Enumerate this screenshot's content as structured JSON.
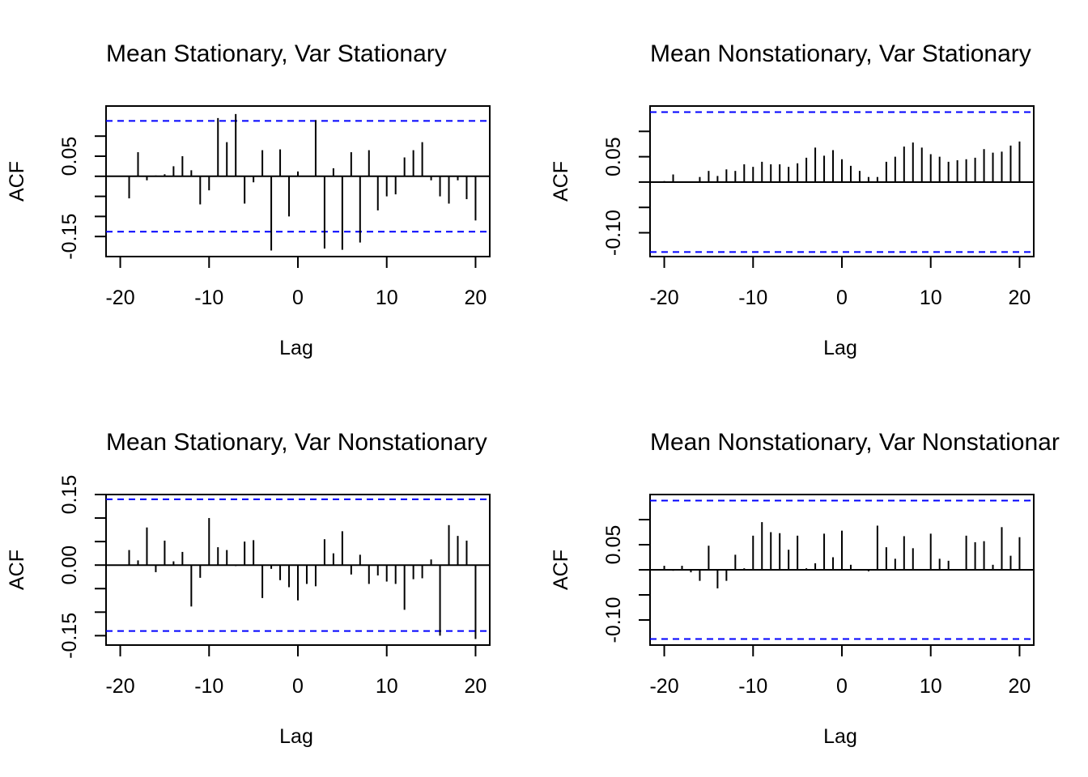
{
  "colors": {
    "confidence_line": "#0000ff",
    "spike": "#000000",
    "axis": "#000000"
  },
  "chart_data": [
    {
      "type": "bar",
      "title": "Mean Stationary, Var Stationary",
      "xlabel": "Lag",
      "ylabel": "ACF",
      "xticks": [
        -20,
        -10,
        0,
        10,
        20
      ],
      "ytick_labels": [
        "-0.15",
        "0.05"
      ],
      "ytick_values": [
        -0.15,
        -0.1,
        -0.05,
        0,
        0.05,
        0.1
      ],
      "xlim": [
        -21.6,
        21.6
      ],
      "ylim": [
        -0.2,
        0.175
      ],
      "conf_band": 0.138,
      "grid": false,
      "legend": "none",
      "x": [
        -20,
        -19,
        -18,
        -17,
        -16,
        -15,
        -14,
        -13,
        -12,
        -11,
        -10,
        -9,
        -8,
        -7,
        -6,
        -5,
        -4,
        -3,
        -2,
        -1,
        0,
        1,
        2,
        3,
        4,
        5,
        6,
        7,
        8,
        9,
        10,
        11,
        12,
        13,
        14,
        15,
        16,
        17,
        18,
        19,
        20
      ],
      "values": [
        0.0,
        -0.055,
        0.06,
        -0.01,
        0.002,
        0.005,
        0.025,
        0.05,
        0.015,
        -0.07,
        -0.035,
        0.145,
        0.085,
        0.155,
        -0.068,
        -0.015,
        0.065,
        -0.185,
        0.067,
        -0.1,
        0.012,
        0.0,
        0.14,
        -0.18,
        0.02,
        -0.183,
        0.06,
        -0.165,
        0.065,
        -0.085,
        -0.05,
        -0.045,
        0.047,
        0.065,
        0.085,
        -0.01,
        -0.05,
        -0.068,
        -0.01,
        -0.057,
        -0.11
      ]
    },
    {
      "type": "bar",
      "title": "Mean Nonstationary, Var Stationary",
      "xlabel": "Lag",
      "ylabel": "ACF",
      "xticks": [
        -20,
        -10,
        0,
        10,
        20
      ],
      "ytick_labels": [
        "-0.10",
        "0.05"
      ],
      "ytick_values": [
        -0.1,
        -0.05,
        0,
        0.05,
        0.1
      ],
      "xlim": [
        -21.6,
        21.6
      ],
      "ylim": [
        -0.147,
        0.15
      ],
      "conf_band": 0.138,
      "grid": false,
      "legend": "none",
      "x": [
        -20,
        -19,
        -18,
        -17,
        -16,
        -15,
        -14,
        -13,
        -12,
        -11,
        -10,
        -9,
        -8,
        -7,
        -6,
        -5,
        -4,
        -3,
        -2,
        -1,
        0,
        1,
        2,
        3,
        4,
        5,
        6,
        7,
        8,
        9,
        10,
        11,
        12,
        13,
        14,
        15,
        16,
        17,
        18,
        19,
        20
      ],
      "values": [
        0.002,
        0.015,
        0.0,
        0.0,
        0.01,
        0.022,
        0.012,
        0.025,
        0.022,
        0.035,
        0.03,
        0.04,
        0.035,
        0.035,
        0.03,
        0.037,
        0.048,
        0.068,
        0.052,
        0.063,
        0.045,
        0.032,
        0.022,
        0.01,
        0.01,
        0.04,
        0.05,
        0.07,
        0.078,
        0.068,
        0.055,
        0.05,
        0.04,
        0.043,
        0.045,
        0.048,
        0.065,
        0.058,
        0.06,
        0.072,
        0.08
      ]
    },
    {
      "type": "bar",
      "title": "Mean Stationary, Var Nonstationary",
      "xlabel": "Lag",
      "ylabel": "ACF",
      "xticks": [
        -20,
        -10,
        0,
        10,
        20
      ],
      "ytick_labels": [
        "-0.15",
        "0.00",
        "0.15"
      ],
      "ytick_values": [
        -0.15,
        -0.1,
        -0.05,
        0,
        0.05,
        0.1,
        0.15
      ],
      "xlim": [
        -21.6,
        21.6
      ],
      "ylim": [
        -0.17,
        0.15
      ],
      "conf_band": 0.14,
      "grid": false,
      "legend": "none",
      "x": [
        -20,
        -19,
        -18,
        -17,
        -16,
        -15,
        -14,
        -13,
        -12,
        -11,
        -10,
        -9,
        -8,
        -7,
        -6,
        -5,
        -4,
        -3,
        -2,
        -1,
        0,
        1,
        2,
        3,
        4,
        5,
        6,
        7,
        8,
        9,
        10,
        11,
        12,
        13,
        14,
        15,
        16,
        17,
        18,
        19,
        20
      ],
      "values": [
        0.0,
        0.032,
        0.01,
        0.08,
        -0.015,
        0.052,
        0.008,
        0.028,
        -0.088,
        -0.027,
        0.1,
        0.038,
        0.032,
        -0.002,
        0.05,
        0.053,
        -0.07,
        -0.008,
        -0.032,
        -0.047,
        -0.075,
        -0.04,
        -0.045,
        0.055,
        0.025,
        0.072,
        -0.02,
        0.022,
        -0.04,
        -0.022,
        -0.035,
        -0.04,
        -0.095,
        -0.03,
        -0.028,
        0.012,
        -0.15,
        0.085,
        0.062,
        0.052,
        -0.157
      ]
    },
    {
      "type": "bar",
      "title": "Mean Nonstationary, Var Nonstationar",
      "xlabel": "Lag",
      "ylabel": "ACF",
      "xticks": [
        -20,
        -10,
        0,
        10,
        20
      ],
      "ytick_labels": [
        "-0.10",
        "0.05"
      ],
      "ytick_values": [
        -0.1,
        -0.05,
        0,
        0.05,
        0.1
      ],
      "xlim": [
        -21.6,
        21.6
      ],
      "ylim": [
        -0.15,
        0.15
      ],
      "conf_band": 0.138,
      "grid": false,
      "legend": "none",
      "x": [
        -20,
        -19,
        -18,
        -17,
        -16,
        -15,
        -14,
        -13,
        -12,
        -11,
        -10,
        -9,
        -8,
        -7,
        -6,
        -5,
        -4,
        -3,
        -2,
        -1,
        0,
        1,
        2,
        3,
        4,
        5,
        6,
        7,
        8,
        9,
        10,
        11,
        12,
        13,
        14,
        15,
        16,
        17,
        18,
        19,
        20
      ],
      "values": [
        0.008,
        -0.002,
        0.008,
        -0.005,
        -0.022,
        0.048,
        -0.037,
        -0.022,
        0.03,
        0.003,
        0.068,
        0.095,
        0.075,
        0.073,
        0.04,
        0.068,
        0.003,
        0.013,
        0.072,
        0.025,
        0.078,
        0.01,
        0.0,
        -0.003,
        0.088,
        0.045,
        0.022,
        0.067,
        0.043,
        0.0,
        0.072,
        0.022,
        0.018,
        0.0,
        0.068,
        0.055,
        0.057,
        0.01,
        0.085,
        0.028,
        0.065
      ]
    }
  ]
}
